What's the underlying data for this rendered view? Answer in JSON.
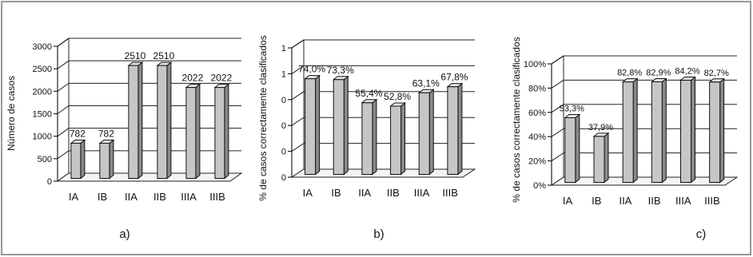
{
  "chart_data": [
    {
      "type": "bar",
      "panel_label": "a)",
      "ylabel": "Número de casos",
      "categories": [
        "IA",
        "IB",
        "IIA",
        "IIB",
        "IIIA",
        "IIIB"
      ],
      "values": [
        782,
        782,
        2510,
        2510,
        2022,
        2022
      ],
      "data_labels": [
        "782",
        "782",
        "2510",
        "2510",
        "2022",
        "2022"
      ],
      "yticks": [
        "0",
        "500",
        "1000",
        "1500",
        "2000",
        "2500",
        "3000"
      ],
      "ylim": [
        0,
        3000
      ],
      "grid": true
    },
    {
      "type": "bar",
      "panel_label": "b)",
      "ylabel": "% de casos correctamente clasificados",
      "categories": [
        "IA",
        "IB",
        "IIA",
        "IIB",
        "IIIA",
        "IIIB"
      ],
      "values": [
        74.0,
        73.3,
        55.4,
        52.8,
        63.1,
        67.8
      ],
      "data_labels": [
        "74,0%",
        "73,3%",
        "55,4%",
        "52,8%",
        "63,1%",
        "67,8%"
      ],
      "yticks": [
        "0",
        "0",
        "0",
        "0",
        "1",
        "1"
      ],
      "ylim": [
        0,
        100
      ],
      "grid": true
    },
    {
      "type": "bar",
      "panel_label": "c)",
      "ylabel": "% de casos correctamente clasificados",
      "categories": [
        "IA",
        "IB",
        "IIA",
        "IIB",
        "IIIA",
        "IIIB"
      ],
      "values": [
        53.3,
        37.9,
        82.8,
        82.9,
        84.2,
        82.7
      ],
      "data_labels": [
        "53,3%",
        "37,9%",
        "82,8%",
        "82,9%",
        "84,2%",
        "82,7%"
      ],
      "yticks": [
        "0%",
        "20%",
        "40%",
        "60%",
        "80%",
        "100%"
      ],
      "ylim": [
        0,
        100
      ],
      "grid": true
    }
  ]
}
